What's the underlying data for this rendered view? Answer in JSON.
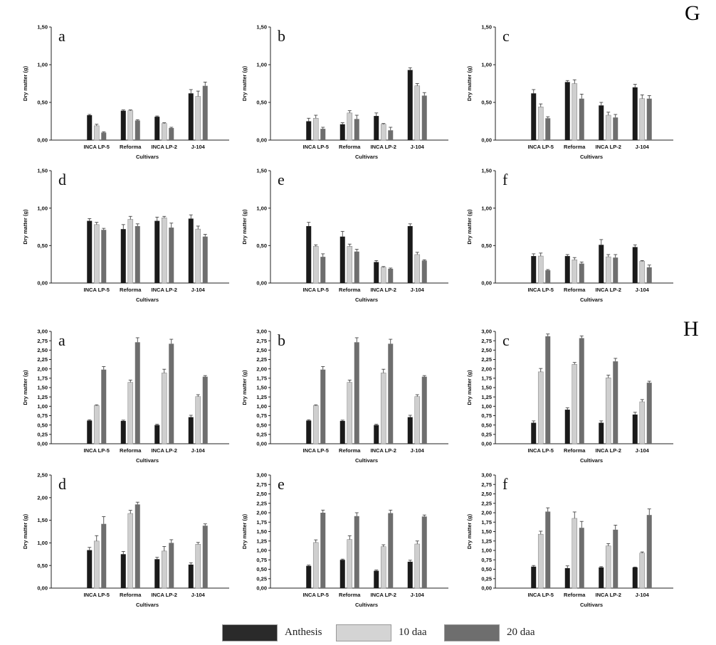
{
  "group_labels": [
    "G",
    "H"
  ],
  "legend": [
    {
      "label": "Anthesis",
      "color": "#1a1a1a"
    },
    {
      "label": "10 daa",
      "color": "#cfcfcf"
    },
    {
      "label": "20 daa",
      "color": "#6e6e6e"
    }
  ],
  "chart_data": [
    {
      "group": "G",
      "panel": "a",
      "type": "bar",
      "ylabel": "Dry matter (g)",
      "xlabel": "Cultivars",
      "categories": [
        "INCA LP-5",
        "Reforma",
        "INCA  LP-2",
        "J-104"
      ],
      "yticks": [
        "0,00",
        "0,50",
        "1,00",
        "1,50"
      ],
      "ylim": [
        0,
        1.5
      ],
      "series": [
        {
          "name": "Anthesis",
          "values": [
            0.33,
            0.39,
            0.31,
            0.62
          ],
          "errors": [
            0.01,
            0.01,
            0.01,
            0.05
          ]
        },
        {
          "name": "10 daa",
          "values": [
            0.19,
            0.39,
            0.22,
            0.58
          ],
          "errors": [
            0.02,
            0.01,
            0.01,
            0.07
          ]
        },
        {
          "name": "20 daa",
          "values": [
            0.1,
            0.26,
            0.16,
            0.72
          ],
          "errors": [
            0.01,
            0.01,
            0.01,
            0.05
          ]
        }
      ]
    },
    {
      "group": "G",
      "panel": "b",
      "type": "bar",
      "ylabel": "Dry matter (g)",
      "xlabel": "Cultivars",
      "categories": [
        "INCA LP-5",
        "Reforma",
        "INCA  LP-2",
        "J-104"
      ],
      "yticks": [
        "0,00",
        "0,50",
        "1,00",
        "1,50"
      ],
      "ylim": [
        0,
        1.5
      ],
      "series": [
        {
          "name": "Anthesis",
          "values": [
            0.25,
            0.21,
            0.32,
            0.93
          ],
          "errors": [
            0.04,
            0.02,
            0.04,
            0.03
          ]
        },
        {
          "name": "10 daa",
          "values": [
            0.29,
            0.36,
            0.21,
            0.72
          ],
          "errors": [
            0.04,
            0.03,
            0.01,
            0.03
          ]
        },
        {
          "name": "20 daa",
          "values": [
            0.15,
            0.28,
            0.13,
            0.59
          ],
          "errors": [
            0.02,
            0.05,
            0.04,
            0.04
          ]
        }
      ]
    },
    {
      "group": "G",
      "panel": "c",
      "type": "bar",
      "ylabel": "Dry matter (g)",
      "xlabel": "Cultivars",
      "categories": [
        "INCA LP-5",
        "Reforma",
        "INCA  LP-2",
        "J-104"
      ],
      "yticks": [
        "0,00",
        "0,50",
        "1,00",
        "1,50"
      ],
      "ylim": [
        0,
        1.5
      ],
      "series": [
        {
          "name": "Anthesis",
          "values": [
            0.62,
            0.77,
            0.46,
            0.7
          ],
          "errors": [
            0.05,
            0.02,
            0.04,
            0.04
          ]
        },
        {
          "name": "10 daa",
          "values": [
            0.44,
            0.75,
            0.33,
            0.55
          ],
          "errors": [
            0.04,
            0.05,
            0.04,
            0.05
          ]
        },
        {
          "name": "20 daa",
          "values": [
            0.29,
            0.55,
            0.3,
            0.55
          ],
          "errors": [
            0.02,
            0.06,
            0.04,
            0.04
          ]
        }
      ]
    },
    {
      "group": "G",
      "panel": "d",
      "type": "bar",
      "ylabel": "Dry matter (g)",
      "xlabel": "Cultivars",
      "categories": [
        "INCA LP-5",
        "Reforma",
        "INCA  LP-2",
        "J-104"
      ],
      "yticks": [
        "0,00",
        "0,50",
        "1,00",
        "1,50"
      ],
      "ylim": [
        0,
        1.5
      ],
      "series": [
        {
          "name": "Anthesis",
          "values": [
            0.83,
            0.72,
            0.83,
            0.86
          ],
          "errors": [
            0.03,
            0.06,
            0.05,
            0.05
          ]
        },
        {
          "name": "10 daa",
          "values": [
            0.78,
            0.85,
            0.87,
            0.72
          ],
          "errors": [
            0.03,
            0.04,
            0.02,
            0.04
          ]
        },
        {
          "name": "20 daa",
          "values": [
            0.71,
            0.76,
            0.74,
            0.62
          ],
          "errors": [
            0.02,
            0.03,
            0.06,
            0.03
          ]
        }
      ]
    },
    {
      "group": "G",
      "panel": "e",
      "type": "bar",
      "ylabel": "Dry matter (g)",
      "xlabel": "Cultivars",
      "categories": [
        "INCA LP-5",
        "Reforma",
        "INCA  LP-2",
        "J-104"
      ],
      "yticks": [
        "0,00",
        "0,50",
        "1,00",
        "1,50"
      ],
      "ylim": [
        0,
        1.5
      ],
      "series": [
        {
          "name": "Anthesis",
          "values": [
            0.76,
            0.62,
            0.28,
            0.76
          ],
          "errors": [
            0.05,
            0.07,
            0.02,
            0.03
          ]
        },
        {
          "name": "10 daa",
          "values": [
            0.49,
            0.49,
            0.21,
            0.38
          ],
          "errors": [
            0.02,
            0.03,
            0.01,
            0.03
          ]
        },
        {
          "name": "20 daa",
          "values": [
            0.35,
            0.42,
            0.19,
            0.3
          ],
          "errors": [
            0.04,
            0.03,
            0.01,
            0.01
          ]
        }
      ]
    },
    {
      "group": "G",
      "panel": "f",
      "type": "bar",
      "ylabel": "Dry matter (g)",
      "xlabel": "Cultivars",
      "categories": [
        "INCA LP-5",
        "Reforma",
        "INCA  LP-2",
        "J-104"
      ],
      "yticks": [
        "0,00",
        "0,50",
        "1,00",
        "1,50"
      ],
      "ylim": [
        0,
        1.5
      ],
      "series": [
        {
          "name": "Anthesis",
          "values": [
            0.36,
            0.36,
            0.51,
            0.48
          ],
          "errors": [
            0.03,
            0.02,
            0.07,
            0.03
          ]
        },
        {
          "name": "10 daa",
          "values": [
            0.36,
            0.31,
            0.35,
            0.29
          ],
          "errors": [
            0.04,
            0.03,
            0.03,
            0.01
          ]
        },
        {
          "name": "20 daa",
          "values": [
            0.17,
            0.26,
            0.34,
            0.21
          ],
          "errors": [
            0.01,
            0.02,
            0.04,
            0.03
          ]
        }
      ]
    },
    {
      "group": "H",
      "panel": "a",
      "type": "bar",
      "ylabel": "Dry matter (g)",
      "xlabel": "Cultivars",
      "categories": [
        "INCA LP-5",
        "Reforma",
        "INCA  LP-2",
        "J-104"
      ],
      "yticks": [
        "0,00",
        "0,25",
        "0,50",
        "0,75",
        "1,00",
        "1,25",
        "1,50",
        "1,75",
        "2,00",
        "2,25",
        "2,50",
        "2,75",
        "3,00"
      ],
      "ylim": [
        0,
        3.0
      ],
      "series": [
        {
          "name": "Anthesis",
          "values": [
            0.62,
            0.61,
            0.5,
            0.71
          ],
          "errors": [
            0.02,
            0.02,
            0.02,
            0.05
          ]
        },
        {
          "name": "10 daa",
          "values": [
            1.02,
            1.64,
            1.89,
            1.26
          ],
          "errors": [
            0.02,
            0.06,
            0.1,
            0.05
          ]
        },
        {
          "name": "20 daa",
          "values": [
            1.98,
            2.71,
            2.67,
            1.79
          ],
          "errors": [
            0.08,
            0.12,
            0.12,
            0.03
          ]
        }
      ]
    },
    {
      "group": "H",
      "panel": "b",
      "type": "bar",
      "ylabel": "Dry matter (g)",
      "xlabel": "Cultivars",
      "categories": [
        "INCA LP-5",
        "Reforma",
        "INCA  LP-2",
        "J-104"
      ],
      "yticks": [
        "0,00",
        "0,25",
        "0,50",
        "0,75",
        "1,00",
        "1,25",
        "1,50",
        "1,75",
        "2,00",
        "2,25",
        "2,50",
        "2,75",
        "3,00"
      ],
      "ylim": [
        0,
        3.0
      ],
      "series": [
        {
          "name": "Anthesis",
          "values": [
            0.62,
            0.61,
            0.5,
            0.71
          ],
          "errors": [
            0.02,
            0.02,
            0.02,
            0.05
          ]
        },
        {
          "name": "10 daa",
          "values": [
            1.02,
            1.64,
            1.89,
            1.26
          ],
          "errors": [
            0.02,
            0.06,
            0.1,
            0.05
          ]
        },
        {
          "name": "20 daa",
          "values": [
            1.98,
            2.71,
            2.67,
            1.79
          ],
          "errors": [
            0.08,
            0.12,
            0.12,
            0.03
          ]
        }
      ]
    },
    {
      "group": "H",
      "panel": "c",
      "type": "bar",
      "ylabel": "Dry matter (g)",
      "xlabel": "Cultivars",
      "categories": [
        "INCA LP-5",
        "Reforma",
        "INCA  LP-2",
        "J-104"
      ],
      "yticks": [
        "0,00",
        "0,25",
        "0,50",
        "0,75",
        "1,00",
        "1,25",
        "1,50",
        "1,75",
        "2,00",
        "2,25",
        "2,50",
        "2,75",
        "3,00"
      ],
      "ylim": [
        0,
        3.0
      ],
      "series": [
        {
          "name": "Anthesis",
          "values": [
            0.56,
            0.91,
            0.56,
            0.78
          ],
          "errors": [
            0.05,
            0.05,
            0.05,
            0.06
          ]
        },
        {
          "name": "10 daa",
          "values": [
            1.92,
            2.12,
            1.76,
            1.12
          ],
          "errors": [
            0.09,
            0.05,
            0.07,
            0.06
          ]
        },
        {
          "name": "20 daa",
          "values": [
            2.87,
            2.82,
            2.2,
            1.63
          ],
          "errors": [
            0.06,
            0.06,
            0.08,
            0.04
          ]
        }
      ]
    },
    {
      "group": "H",
      "panel": "d",
      "type": "bar",
      "ylabel": "Dry matter (g)",
      "xlabel": "Cultivars",
      "categories": [
        "INCA LP-5",
        "Reforma",
        "INCA  LP-2",
        "J-104"
      ],
      "yticks": [
        "0,00",
        "0,50",
        "1,00",
        "1,50",
        "2,00",
        "2,50"
      ],
      "ylim": [
        0,
        2.5
      ],
      "series": [
        {
          "name": "Anthesis",
          "values": [
            0.84,
            0.75,
            0.64,
            0.52
          ],
          "errors": [
            0.06,
            0.06,
            0.04,
            0.04
          ]
        },
        {
          "name": "10 daa",
          "values": [
            1.04,
            1.65,
            0.82,
            0.97
          ],
          "errors": [
            0.12,
            0.07,
            0.1,
            0.04
          ]
        },
        {
          "name": "20 daa",
          "values": [
            1.42,
            1.85,
            1.0,
            1.38
          ],
          "errors": [
            0.16,
            0.05,
            0.07,
            0.04
          ]
        }
      ]
    },
    {
      "group": "H",
      "panel": "e",
      "type": "bar",
      "ylabel": "Dry matter (g)",
      "xlabel": "Cultivars",
      "categories": [
        "INCA LP-5",
        "Reforma",
        "INCA  LP-2",
        "J-104"
      ],
      "yticks": [
        "0,00",
        "0,25",
        "0,50",
        "0,75",
        "1,00",
        "1,25",
        "1,50",
        "1,75",
        "2,00",
        "2,25",
        "2,50",
        "2,75",
        "3,00"
      ],
      "ylim": [
        0,
        3.0
      ],
      "series": [
        {
          "name": "Anthesis",
          "values": [
            0.59,
            0.75,
            0.46,
            0.7
          ],
          "errors": [
            0.02,
            0.02,
            0.02,
            0.04
          ]
        },
        {
          "name": "10 daa",
          "values": [
            1.21,
            1.29,
            1.1,
            1.17
          ],
          "errors": [
            0.07,
            0.1,
            0.05,
            0.08
          ]
        },
        {
          "name": "20 daa",
          "values": [
            2.0,
            1.91,
            1.99,
            1.9
          ],
          "errors": [
            0.07,
            0.09,
            0.08,
            0.04
          ]
        }
      ]
    },
    {
      "group": "H",
      "panel": "f",
      "type": "bar",
      "ylabel": "Dry matter (g)",
      "xlabel": "Cultivars",
      "categories": [
        "INCA LP-5",
        "Reforma",
        "INCA  LP-2",
        "J-104"
      ],
      "yticks": [
        "0,00",
        "0,25",
        "0,50",
        "0,75",
        "1,00",
        "1,25",
        "1,50",
        "1,75",
        "2,00",
        "2,25",
        "2,50",
        "2,75",
        "3,00"
      ],
      "ylim": [
        0,
        3.0
      ],
      "series": [
        {
          "name": "Anthesis",
          "values": [
            0.57,
            0.53,
            0.55,
            0.55
          ],
          "errors": [
            0.03,
            0.06,
            0.02,
            0.01
          ]
        },
        {
          "name": "10 daa",
          "values": [
            1.43,
            1.85,
            1.12,
            0.93
          ],
          "errors": [
            0.08,
            0.17,
            0.06,
            0.03
          ]
        },
        {
          "name": "20 daa",
          "values": [
            2.03,
            1.6,
            1.55,
            1.94
          ],
          "errors": [
            0.1,
            0.17,
            0.12,
            0.16
          ]
        }
      ]
    }
  ]
}
